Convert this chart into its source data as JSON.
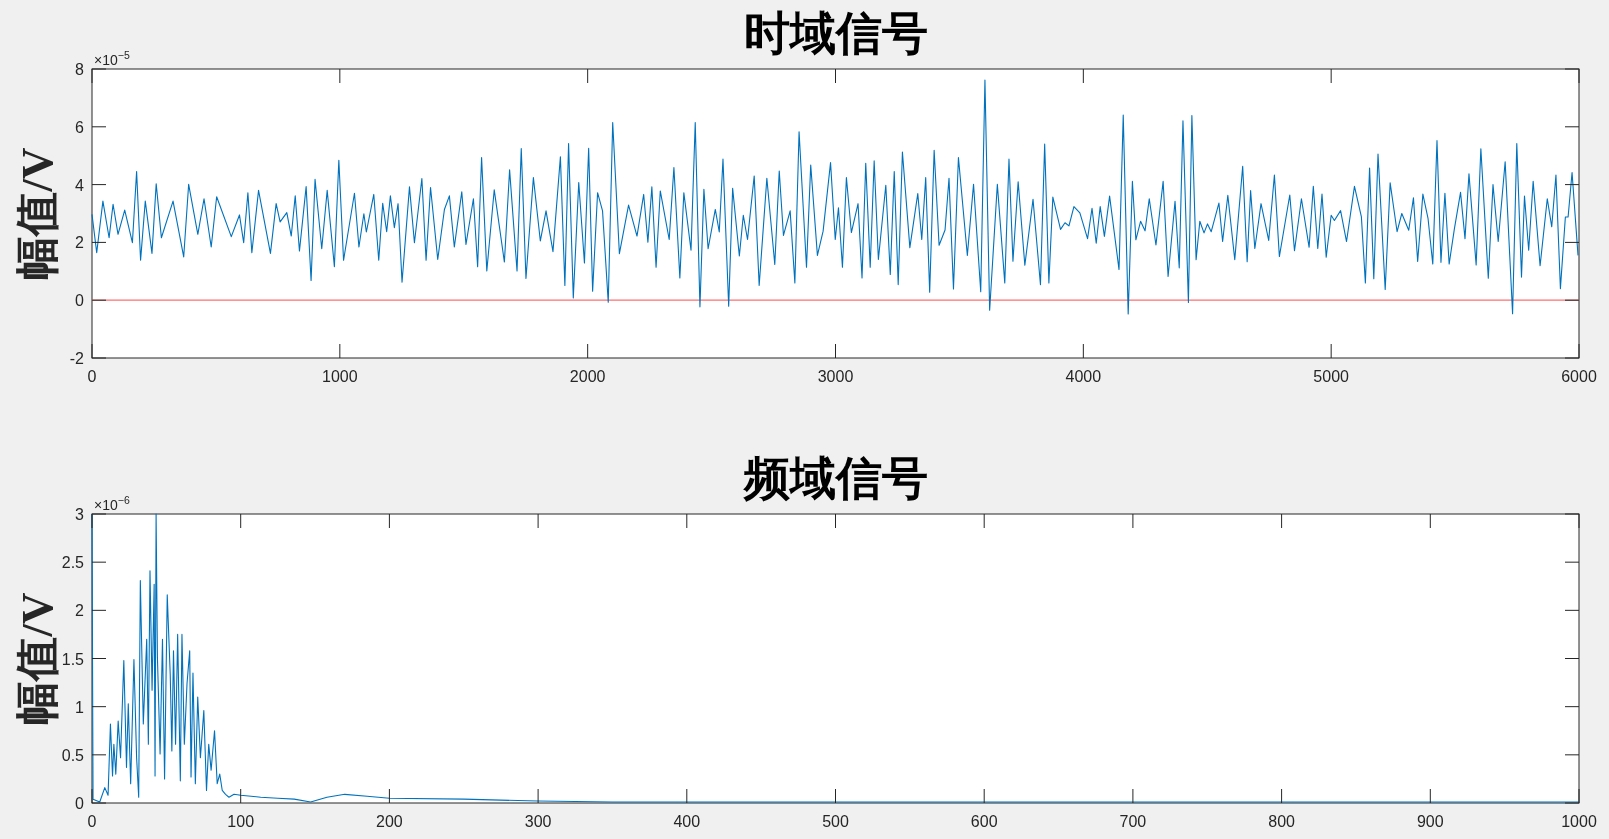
{
  "chart_data": [
    {
      "type": "line",
      "title": "时域信号",
      "ylabel": "幅值/V",
      "annotations": [
        "×10$^{−5}$"
      ],
      "xlim": [
        0,
        6000
      ],
      "ylim": [
        -2,
        8
      ],
      "xticks": [
        0,
        1000,
        2000,
        3000,
        4000,
        5000,
        6000
      ],
      "yticks": [
        -2,
        0,
        2,
        4,
        6,
        8
      ],
      "ref_lines": [
        {
          "axis": "y",
          "value": 0,
          "color": "#ff6f6f"
        }
      ],
      "x": [
        0,
        19,
        44,
        69,
        85,
        105,
        132,
        163,
        180,
        196,
        215,
        242,
        259,
        280,
        327,
        370,
        390,
        427,
        452,
        481,
        503,
        562,
        595,
        612,
        629,
        645,
        672,
        720,
        743,
        759,
        786,
        804,
        820,
        837,
        864,
        884,
        900,
        927,
        949,
        978,
        996,
        1015,
        1059,
        1077,
        1097,
        1107,
        1137,
        1157,
        1173,
        1189,
        1204,
        1220,
        1235,
        1251,
        1281,
        1301,
        1331,
        1348,
        1366,
        1395,
        1422,
        1442,
        1462,
        1492,
        1509,
        1539,
        1556,
        1572,
        1593,
        1623,
        1664,
        1685,
        1715,
        1732,
        1751,
        1781,
        1809,
        1832,
        1860,
        1890,
        1908,
        1923,
        1942,
        1964,
        1987,
        2004,
        2020,
        2040,
        2060,
        2083,
        2101,
        2128,
        2165,
        2199,
        2226,
        2243,
        2259,
        2276,
        2293,
        2329,
        2348,
        2372,
        2388,
        2417,
        2434,
        2453,
        2469,
        2486,
        2515,
        2531,
        2546,
        2569,
        2585,
        2612,
        2628,
        2645,
        2672,
        2692,
        2723,
        2755,
        2773,
        2790,
        2817,
        2836,
        2853,
        2883,
        2900,
        2927,
        2950,
        2980,
        2999,
        3012,
        3028,
        3044,
        3064,
        3091,
        3107,
        3122,
        3140,
        3156,
        3173,
        3203,
        3221,
        3237,
        3253,
        3270,
        3300,
        3332,
        3348,
        3364,
        3380,
        3398,
        3418,
        3442,
        3458,
        3476,
        3496,
        3532,
        3557,
        3586,
        3603,
        3622,
        3653,
        3683,
        3700,
        3716,
        3737,
        3764,
        3797,
        3827,
        3844,
        3861,
        3877,
        3908,
        3926,
        3942,
        3962,
        3986,
        4017,
        4035,
        4052,
        4068,
        4085,
        4106,
        4144,
        4161,
        4181,
        4198,
        4212,
        4231,
        4249,
        4266,
        4293,
        4322,
        4342,
        4370,
        4387,
        4402,
        4424,
        4438,
        4455,
        4470,
        4487,
        4501,
        4516,
        4547,
        4562,
        4583,
        4611,
        4643,
        4661,
        4675,
        4692,
        4717,
        4748,
        4771,
        4791,
        4833,
        4852,
        4880,
        4911,
        4928,
        4946,
        4963,
        4980,
        5000,
        5013,
        5038,
        5062,
        5094,
        5122,
        5138,
        5155,
        5172,
        5189,
        5218,
        5238,
        5266,
        5285,
        5313,
        5332,
        5349,
        5370,
        5391,
        5410,
        5427,
        5443,
        5459,
        5476,
        5497,
        5522,
        5540,
        5556,
        5585,
        5604,
        5634,
        5653,
        5674,
        5702,
        5732,
        5749,
        5768,
        5780,
        5797,
        5815,
        5843,
        5872,
        5890,
        5907,
        5925,
        5945,
        5956,
        5972,
        5996
      ],
      "series": [
        {
          "color": "#0072bd",
          "values": [
            2.97,
            1.64,
            3.43,
            2.16,
            3.32,
            2.28,
            3.12,
            1.99,
            4.45,
            1.38,
            3.43,
            1.62,
            4.03,
            2.16,
            3.43,
            1.5,
            4.01,
            2.28,
            3.51,
            1.84,
            3.58,
            2.2,
            2.95,
            1.99,
            3.72,
            1.64,
            3.8,
            1.62,
            3.34,
            2.71,
            3.03,
            2.22,
            3.61,
            1.7,
            3.93,
            0.68,
            4.18,
            1.78,
            3.8,
            1.16,
            4.84,
            1.38,
            3.7,
            1.84,
            2.99,
            2.36,
            3.66,
            1.38,
            3.35,
            2.37,
            3.61,
            2.51,
            3.34,
            0.62,
            3.92,
            1.99,
            4.21,
            1.38,
            3.9,
            1.41,
            3.14,
            3.61,
            1.84,
            3.75,
            1.93,
            3.51,
            1.16,
            4.94,
            1.01,
            3.82,
            1.32,
            4.51,
            1.01,
            5.25,
            0.75,
            4.24,
            2.05,
            3.09,
            1.68,
            4.96,
            0.51,
            5.42,
            0.08,
            4.07,
            1.29,
            5.26,
            0.31,
            3.72,
            3.09,
            -0.07,
            6.15,
            1.61,
            3.29,
            2.22,
            3.66,
            2.01,
            3.92,
            1.14,
            3.78,
            2.1,
            4.59,
            0.77,
            3.72,
            1.73,
            6.15,
            -0.23,
            3.84,
            1.78,
            3.14,
            2.36,
            4.88,
            -0.21,
            3.87,
            1.53,
            2.94,
            2.1,
            4.3,
            0.51,
            4.22,
            1.24,
            4.47,
            2.24,
            3.09,
            0.6,
            5.83,
            1.14,
            4.68,
            1.55,
            2.39,
            4.76,
            2.1,
            3.2,
            1.14,
            4.24,
            2.34,
            3.34,
            0.77,
            4.74,
            1.14,
            4.82,
            1.41,
            3.98,
            0.89,
            4.45,
            0.54,
            5.13,
            1.82,
            3.69,
            2.1,
            4.24,
            0.28,
            5.19,
            1.9,
            2.43,
            4.22,
            0.39,
            4.94,
            1.55,
            4.01,
            0.29,
            7.62,
            -0.35,
            4.01,
            0.6,
            4.88,
            1.35,
            4.1,
            1.21,
            3.49,
            0.54,
            5.4,
            0.6,
            3.57,
            2.45,
            2.68,
            2.57,
            3.24,
            3.02,
            2.13,
            3.18,
            1.97,
            3.24,
            2.21,
            3.6,
            1.06,
            6.41,
            -0.48,
            4.11,
            2.09,
            2.73,
            2.4,
            3.51,
            1.91,
            4.11,
            0.82,
            3.42,
            1.12,
            6.21,
            -0.08,
            6.39,
            1.4,
            2.73,
            2.33,
            2.64,
            2.37,
            3.36,
            2.03,
            3.63,
            1.4,
            4.63,
            1.33,
            3.79,
            1.79,
            3.34,
            2.07,
            4.33,
            1.51,
            3.64,
            1.71,
            3.51,
            1.83,
            3.94,
            1.79,
            3.67,
            1.49,
            2.94,
            2.76,
            3.1,
            2.03,
            3.94,
            2.88,
            0.6,
            4.57,
            0.74,
            5.06,
            0.37,
            4.06,
            2.37,
            3.0,
            2.42,
            3.54,
            1.34,
            3.67,
            2.82,
            1.25,
            5.52,
            1.31,
            3.7,
            1.25,
            2.46,
            3.73,
            2.13,
            4.37,
            1.22,
            5.24,
            0.76,
            4.0,
            2.03,
            4.79,
            -0.47,
            5.42,
            0.8,
            3.6,
            1.73,
            4.11,
            1.19,
            3.51,
            2.54,
            4.33,
            0.4,
            2.88,
            2.88,
            4.42,
            1.55
          ]
        }
      ]
    },
    {
      "type": "line",
      "title": "频域信号",
      "ylabel": "幅值/V",
      "annotations": [
        "×10$^{−6}$"
      ],
      "xlim": [
        0,
        1000
      ],
      "ylim": [
        0,
        3
      ],
      "xticks": [
        0,
        100,
        200,
        300,
        400,
        500,
        600,
        700,
        800,
        900,
        1000
      ],
      "yticks": [
        0,
        0.5,
        1,
        1.5,
        2,
        2.5,
        3
      ],
      "x": [
        0,
        0.7,
        5.2,
        8.6,
        10.8,
        12.4,
        13.8,
        14.7,
        16,
        17.6,
        19.2,
        21.4,
        23.2,
        24.4,
        26,
        28.2,
        30,
        31.4,
        32.5,
        34.5,
        36.8,
        37.9,
        39,
        40.4,
        41.8,
        42.4,
        43.1,
        44,
        45.8,
        47.4,
        48.8,
        50.6,
        52.6,
        53.7,
        54.8,
        56.2,
        57.6,
        59.4,
        60.5,
        62.1,
        63.9,
        65.7,
        66.6,
        67.9,
        69.5,
        71.1,
        72.9,
        75.2,
        77,
        78.5,
        80.1,
        82.4,
        84.2,
        85.9,
        87.6,
        89.8,
        92.1,
        95.5,
        100,
        107,
        113.5,
        125,
        136,
        147,
        158,
        170,
        185,
        200,
        250,
        300,
        350,
        500,
        700,
        1000
      ],
      "series": [
        {
          "color": "#0072bd",
          "values": [
            3.0,
            0.04,
            0.01,
            0.16,
            0.08,
            0.82,
            0.28,
            0.61,
            0.3,
            0.85,
            0.47,
            1.48,
            0.37,
            1.03,
            0.2,
            1.49,
            0.47,
            0.06,
            2.31,
            0.82,
            1.7,
            0.61,
            2.41,
            1.17,
            2.27,
            0.28,
            3.0,
            1.51,
            0.51,
            1.7,
            0.25,
            2.16,
            1.34,
            0.54,
            1.58,
            0.61,
            1.75,
            0.23,
            1.75,
            0.61,
            1.24,
            1.58,
            0.27,
            1.35,
            0.2,
            1.1,
            0.47,
            0.96,
            0.13,
            0.61,
            0.34,
            0.75,
            0.2,
            0.3,
            0.13,
            0.09,
            0.06,
            0.09,
            0.08,
            0.07,
            0.06,
            0.05,
            0.04,
            0.01,
            0.06,
            0.09,
            0.07,
            0.05,
            0.04,
            0.02,
            0.01,
            0.01,
            0.01,
            0.01
          ]
        }
      ]
    }
  ]
}
